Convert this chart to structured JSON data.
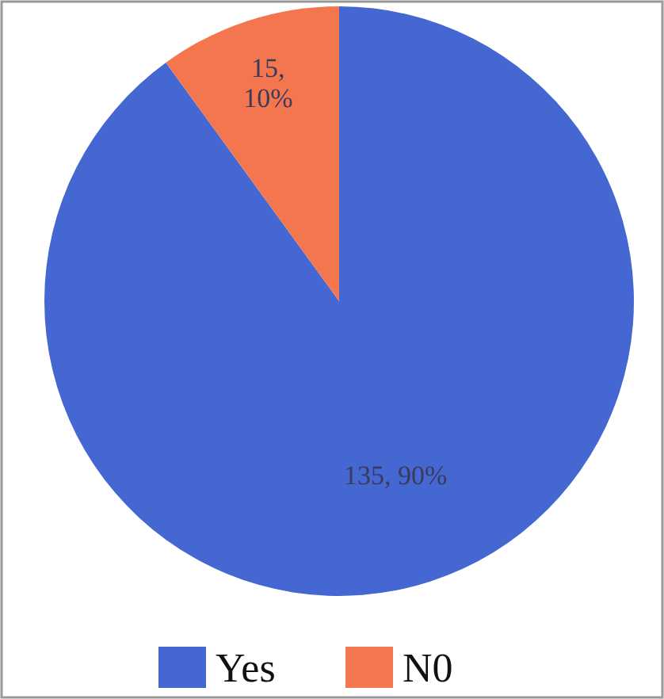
{
  "chart_data": {
    "type": "pie",
    "categories": [
      "Yes",
      "N0"
    ],
    "values": [
      135,
      15
    ],
    "colors": [
      "#4467d2",
      "#f3764e"
    ],
    "value_labels": [
      "135, 90%",
      "15, 10%"
    ],
    "legend": "bottom"
  }
}
